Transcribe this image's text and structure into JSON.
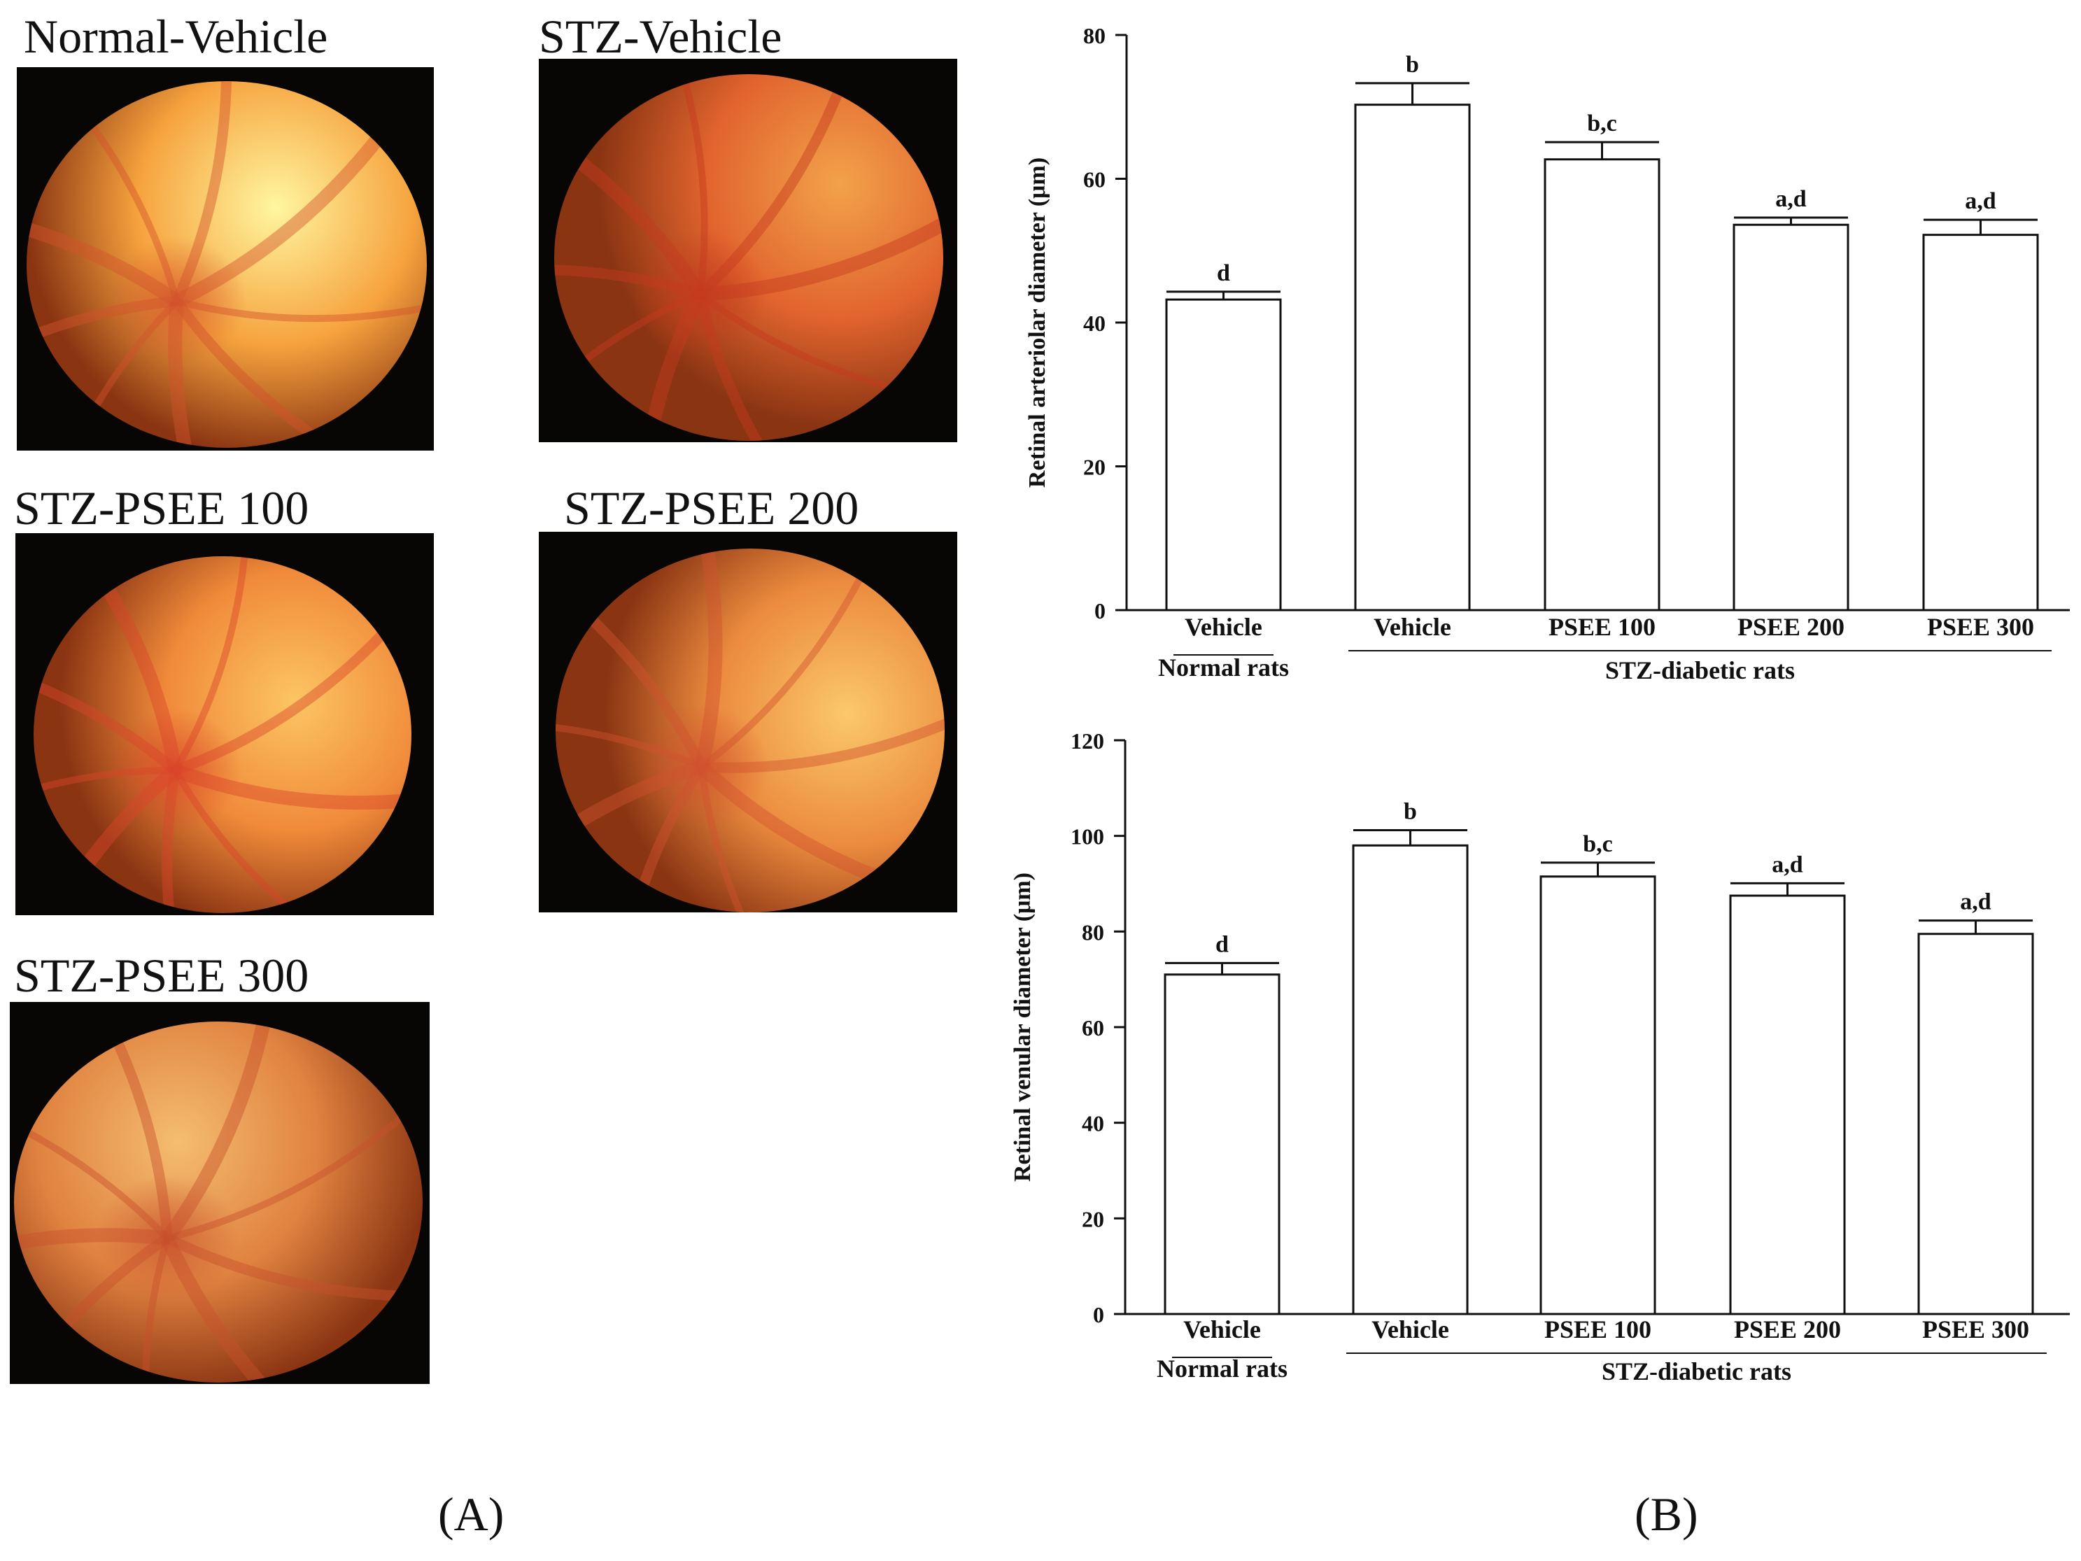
{
  "panel_a": {
    "label": "(A)",
    "images": [
      {
        "id": "normal-vehicle",
        "title": "Normal-Vehicle",
        "base_color": "#f6a33e",
        "bright_color": "#fff6a0",
        "vessel_color": "#d2532c"
      },
      {
        "id": "stz-vehicle",
        "title": "STZ-Vehicle",
        "base_color": "#e1642e",
        "bright_color": "#f2a24a",
        "vessel_color": "#c63a1e"
      },
      {
        "id": "stz-psee-100",
        "title": "STZ-PSEE 100",
        "base_color": "#f08a3a",
        "bright_color": "#fcc563",
        "vessel_color": "#d9442a"
      },
      {
        "id": "stz-psee-200",
        "title": "STZ-PSEE 200",
        "base_color": "#eb8a3e",
        "bright_color": "#fbc86a",
        "vessel_color": "#d0522e"
      },
      {
        "id": "stz-psee-300",
        "title": "STZ-PSEE 300",
        "base_color": "#e08240",
        "bright_color": "#f4bd70",
        "vessel_color": "#c8502c"
      }
    ]
  },
  "panel_b": {
    "label": "(B)"
  },
  "chart_data": [
    {
      "type": "bar",
      "ylabel": "Retinal arteriolar diameter (μm)",
      "ylim": [
        0,
        80
      ],
      "yticks": [
        0,
        20,
        40,
        60,
        80
      ],
      "categories": [
        "Vehicle",
        "Vehicle",
        "PSEE 100",
        "PSEE 200",
        "PSEE 300"
      ],
      "groups": [
        {
          "label": "Normal rats",
          "categories": [
            0
          ]
        },
        {
          "label": "STZ-diabetic rats",
          "categories": [
            1,
            2,
            3,
            4
          ]
        }
      ],
      "values": [
        43.2,
        70.3,
        62.7,
        53.6,
        52.2
      ],
      "errors": [
        1.1,
        3.0,
        2.4,
        1.0,
        2.1
      ],
      "annotations": [
        "d",
        "b",
        "b,c",
        "a,d",
        "a,d"
      ]
    },
    {
      "type": "bar",
      "ylabel": "Retinal venular diameter (μm)",
      "ylim": [
        0,
        120
      ],
      "yticks": [
        0,
        20,
        40,
        60,
        80,
        100,
        120
      ],
      "categories": [
        "Vehicle",
        "Vehicle",
        "PSEE 100",
        "PSEE 200",
        "PSEE 300"
      ],
      "groups": [
        {
          "label": "Normal rats",
          "categories": [
            0
          ]
        },
        {
          "label": "STZ-diabetic rats",
          "categories": [
            1,
            2,
            3,
            4
          ]
        }
      ],
      "values": [
        71.0,
        98.0,
        91.5,
        87.5,
        79.5
      ],
      "errors": [
        2.4,
        3.2,
        2.9,
        2.6,
        2.8
      ],
      "annotations": [
        "d",
        "b",
        "b,c",
        "a,d",
        "a,d"
      ]
    }
  ]
}
